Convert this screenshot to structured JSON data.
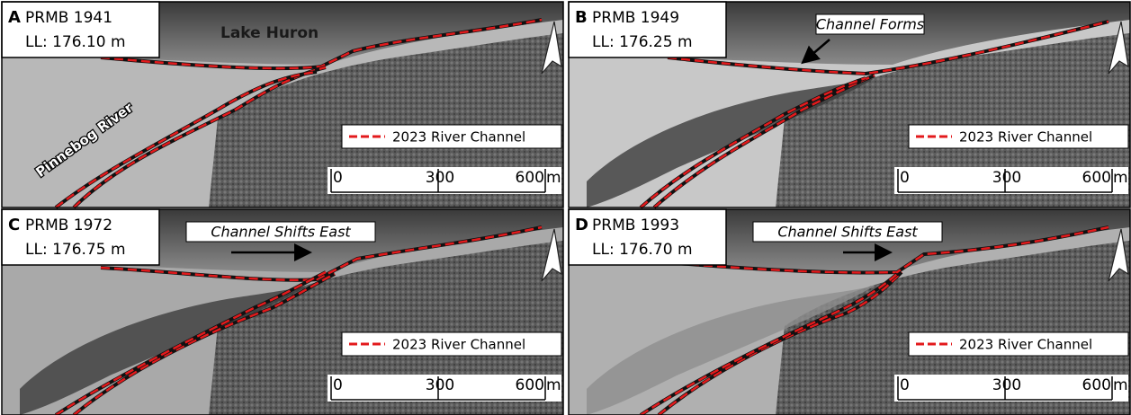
{
  "panels": [
    {
      "letter": "A",
      "title": "PRMB 1941",
      "level": "LL: 176.10 m",
      "lake_label": "Lake Huron",
      "river_label": "Pinnebog River",
      "legend": "2023 River Channel",
      "scale": {
        "ticks": [
          "0",
          "300",
          "600"
        ],
        "unit": "m"
      }
    },
    {
      "letter": "B",
      "title": "PRMB 1949",
      "level": "LL: 176.25 m",
      "annotation": "Channel Forms",
      "legend": "2023 River Channel",
      "scale": {
        "ticks": [
          "0",
          "300",
          "600"
        ],
        "unit": "m"
      }
    },
    {
      "letter": "C",
      "title": "PRMB 1972",
      "level": "LL: 176.75 m",
      "annotation": "Channel Shifts East",
      "legend": "2023 River Channel",
      "scale": {
        "ticks": [
          "0",
          "300",
          "600"
        ],
        "unit": "m"
      }
    },
    {
      "letter": "D",
      "title": "PRMB 1993",
      "level": "LL: 176.70 m",
      "annotation": "Channel Shifts East",
      "legend": "2023 River Channel",
      "scale": {
        "ticks": [
          "0",
          "300",
          "600"
        ],
        "unit": "m"
      }
    }
  ]
}
